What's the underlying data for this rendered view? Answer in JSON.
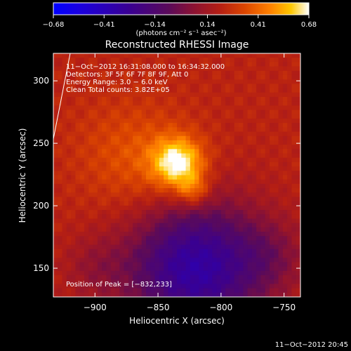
{
  "chart_data": {
    "type": "heatmap",
    "title": "Reconstructed RHESSI Image",
    "xlabel": "Heliocentric X (arcsec)",
    "ylabel": "Heliocentric Y (arcsec)",
    "xlim": [
      -933,
      -737
    ],
    "ylim": [
      127,
      322
    ],
    "x_ticks": [
      {
        "value": -900,
        "label": "−900"
      },
      {
        "value": -850,
        "label": "−850"
      },
      {
        "value": -800,
        "label": "−800"
      },
      {
        "value": -750,
        "label": "−750"
      }
    ],
    "y_ticks": [
      {
        "value": 150,
        "label": "150"
      },
      {
        "value": 200,
        "label": "200"
      },
      {
        "value": 250,
        "label": "250"
      },
      {
        "value": 300,
        "label": "300"
      }
    ],
    "colorbar": {
      "range": [
        -0.68,
        0.68
      ],
      "tick_values": [
        -0.68,
        -0.41,
        -0.14,
        0.14,
        0.41,
        0.68
      ],
      "tick_labels": [
        "−0.68",
        "−0.41",
        "−0.14",
        "0.14",
        "0.41",
        "0.68"
      ],
      "units_label": "(photons cm⁻² s⁻¹ asec⁻²)"
    },
    "info_lines": [
      "11−Oct−2012 16:31:08.000 to 16:34:32.000",
      "Detectors: 3F 5F 6F 7F 8F 9F, Att 0",
      "Energy Range: 3.0 − 6.0 keV",
      "Clean    Total counts: 3.82E+05"
    ],
    "peak_label": "Position of Peak = [−832,233]",
    "peak_position": [
      -832,
      233
    ],
    "timestamp": "11−Oct−2012 20:45",
    "colors": {
      "background": "#000000",
      "colormap": [
        "#0000ff",
        "#3c00a0",
        "#5a0a5a",
        "#8c1232",
        "#b41e14",
        "#dc4600",
        "#ff8200",
        "#ffc800",
        "#ffffff"
      ]
    }
  }
}
